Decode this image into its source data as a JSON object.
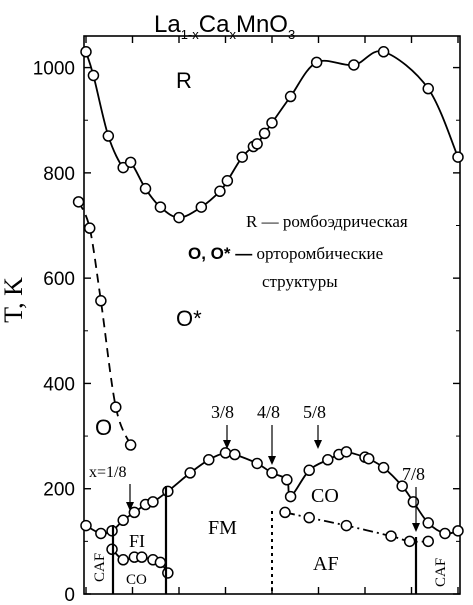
{
  "chart_data": {
    "type": "scatter",
    "title_main": "La",
    "title_sub1": "1-x",
    "title_mid": "Ca",
    "title_sub2": "x",
    "title_end": "MnO",
    "title_sub3": "3",
    "ylabel": "T, K",
    "xlabel": "",
    "ylim": [
      0,
      1060
    ],
    "xlim": [
      0,
      1
    ],
    "y_ticks": [
      "0",
      "200",
      "400",
      "600",
      "800",
      "1000"
    ],
    "y_tick_values": [
      0,
      200,
      400,
      600,
      800,
      1000
    ],
    "x_tick_values": [
      0,
      0.125,
      0.25,
      0.375,
      0.5,
      0.625,
      0.75,
      0.875,
      1
    ],
    "series": [
      {
        "style": "solid",
        "points": [
          [
            0.0,
            1030
          ],
          [
            0.02,
            985
          ],
          [
            0.06,
            870
          ],
          [
            0.1,
            810
          ],
          [
            0.12,
            820
          ],
          [
            0.16,
            770
          ],
          [
            0.2,
            735
          ],
          [
            0.25,
            715
          ],
          [
            0.31,
            735
          ],
          [
            0.36,
            765
          ],
          [
            0.38,
            785
          ],
          [
            0.42,
            830
          ],
          [
            0.45,
            850
          ],
          [
            0.46,
            855
          ],
          [
            0.48,
            875
          ],
          [
            0.5,
            895
          ],
          [
            0.55,
            945
          ],
          [
            0.62,
            1010
          ],
          [
            0.72,
            1005
          ],
          [
            0.8,
            1030
          ],
          [
            0.92,
            960
          ],
          [
            1.0,
            830
          ]
        ]
      },
      {
        "style": "dashed",
        "points": [
          [
            -0.02,
            745
          ],
          [
            0.01,
            695
          ],
          [
            0.04,
            557
          ],
          [
            0.08,
            355
          ],
          [
            0.12,
            283
          ]
        ]
      },
      {
        "style": "solid",
        "points": [
          [
            0.0,
            130
          ],
          [
            0.04,
            115
          ],
          [
            0.07,
            120
          ],
          [
            0.1,
            140
          ],
          [
            0.13,
            155
          ],
          [
            0.16,
            170
          ],
          [
            0.18,
            175
          ],
          [
            0.22,
            195
          ],
          [
            0.28,
            230
          ],
          [
            0.33,
            255
          ],
          [
            0.375,
            268
          ],
          [
            0.4,
            265
          ],
          [
            0.46,
            248
          ],
          [
            0.5,
            230
          ],
          [
            0.54,
            217
          ],
          [
            0.55,
            185
          ],
          [
            0.6,
            235
          ],
          [
            0.65,
            255
          ],
          [
            0.68,
            265
          ],
          [
            0.7,
            270
          ],
          [
            0.75,
            260
          ],
          [
            0.76,
            257
          ],
          [
            0.8,
            240
          ],
          [
            0.85,
            205
          ],
          [
            0.88,
            175
          ],
          [
            0.92,
            135
          ],
          [
            0.965,
            115
          ],
          [
            1.0,
            120
          ]
        ]
      },
      {
        "style": "solid",
        "points": [
          [
            0.07,
            85
          ],
          [
            0.1,
            65
          ],
          [
            0.13,
            70
          ],
          [
            0.15,
            70
          ],
          [
            0.18,
            65
          ],
          [
            0.2,
            60
          ],
          [
            0.22,
            40
          ]
        ]
      },
      {
        "style": "dashdot",
        "points": [
          [
            0.535,
            155
          ],
          [
            0.6,
            145
          ],
          [
            0.7,
            130
          ],
          [
            0.82,
            110
          ],
          [
            0.87,
            100
          ],
          [
            0.92,
            100
          ]
        ]
      }
    ],
    "annotations": {
      "R": "R",
      "O_star": "O*",
      "O": "O",
      "legend1": "R  —  ромбоэдрическая",
      "legend2_bold": "O, O* —",
      "legend2_rest": " орторомбические",
      "legend3": "структуры",
      "x_eq": "x=1/8",
      "f38": "3/8",
      "f48": "4/8",
      "f58": "5/8",
      "f78": "7/8",
      "FI": "FI",
      "CO_left": "CO",
      "FM": "FM",
      "CO_right": "CO",
      "AF": "AF",
      "CAF_left": "CAF",
      "CAF_right": "CAF"
    }
  }
}
